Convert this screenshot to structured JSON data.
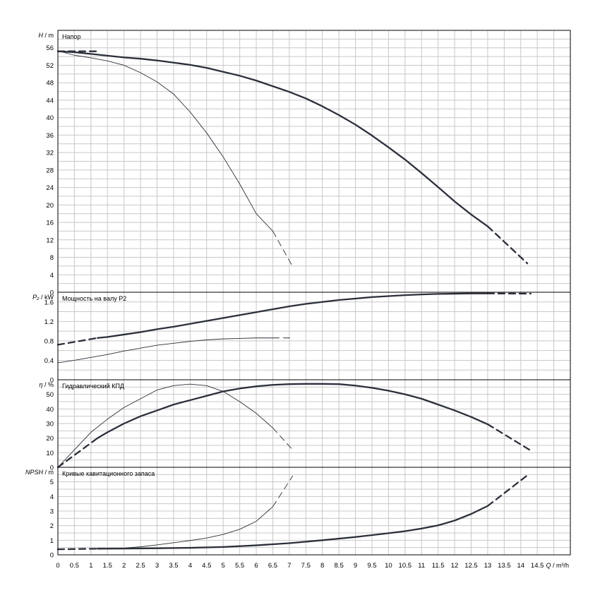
{
  "chart_data": [
    {
      "type": "line",
      "panel": "head",
      "title": "Напор",
      "ylabel_symbol": "H",
      "ylabel_unit": "m",
      "ylim": [
        0,
        60
      ],
      "yticks": [
        0,
        4,
        8,
        12,
        16,
        20,
        24,
        28,
        32,
        36,
        40,
        44,
        48,
        52,
        56
      ],
      "series": [
        {
          "weight": "bold",
          "x": [
            0,
            0.5,
            1,
            1.5,
            2,
            2.5,
            3,
            3.5,
            4,
            4.5,
            5,
            5.5,
            6,
            6.5,
            7,
            7.5,
            8,
            8.5,
            9,
            9.5,
            10,
            10.5,
            11,
            11.5,
            12,
            12.5,
            13
          ],
          "values": [
            55.2,
            55.0,
            54.6,
            54.2,
            53.8,
            53.5,
            53.1,
            52.6,
            52.1,
            51.4,
            50.5,
            49.6,
            48.5,
            47.2,
            45.9,
            44.4,
            42.6,
            40.6,
            38.4,
            35.9,
            33.2,
            30.4,
            27.3,
            24.1,
            20.8,
            17.8,
            15.1
          ],
          "dashed_start_x": [
            0,
            1.2
          ],
          "dashed_end_x": [
            13,
            14.2
          ],
          "dashed_end_y": [
            15.1,
            6.6
          ]
        },
        {
          "weight": "thin",
          "x": [
            0,
            0.5,
            1,
            1.5,
            2,
            2.5,
            3,
            3.5,
            4,
            4.5,
            5,
            5.5,
            6,
            6.5
          ],
          "values": [
            55.3,
            54.3,
            53.7,
            53.0,
            52.0,
            50.3,
            48.2,
            45.4,
            41.3,
            36.5,
            31.0,
            24.8,
            18.0,
            14.0
          ],
          "dashed_end_x": [
            6.5,
            7.1
          ],
          "dashed_end_y": [
            14.0,
            5.9
          ]
        }
      ]
    },
    {
      "type": "line",
      "panel": "power",
      "title": "Мощность на валу P2",
      "ylabel_symbol": "P₂",
      "ylabel_unit": "kW",
      "ylim": [
        0,
        1.8
      ],
      "yticks": [
        0,
        0.4,
        0.8,
        1.2,
        1.6
      ],
      "series": [
        {
          "weight": "bold",
          "x": [
            1.2,
            1.5,
            2,
            2.5,
            3,
            3.5,
            4,
            4.5,
            5,
            5.5,
            6,
            6.5,
            7,
            7.5,
            8,
            8.5,
            9,
            9.5,
            10,
            10.5,
            11,
            11.5,
            12,
            12.5,
            13
          ],
          "values": [
            0.86,
            0.88,
            0.93,
            0.98,
            1.04,
            1.09,
            1.15,
            1.21,
            1.27,
            1.33,
            1.39,
            1.45,
            1.51,
            1.56,
            1.6,
            1.64,
            1.67,
            1.7,
            1.72,
            1.74,
            1.755,
            1.765,
            1.77,
            1.775,
            1.775
          ],
          "dashed_start_x": [
            0,
            1.2
          ],
          "dashed_start_y": [
            0.72,
            0.86
          ],
          "dashed_end_x": [
            13,
            14.3
          ],
          "dashed_end_y": [
            1.775,
            1.77
          ]
        },
        {
          "weight": "thin",
          "x": [
            0,
            0.5,
            1,
            1.5,
            2,
            2.5,
            3,
            3.5,
            4,
            4.5,
            5,
            5.5,
            6,
            6.5
          ],
          "values": [
            0.35,
            0.4,
            0.46,
            0.52,
            0.59,
            0.65,
            0.71,
            0.75,
            0.79,
            0.82,
            0.84,
            0.85,
            0.86,
            0.86
          ],
          "dashed_end_x": [
            6.5,
            7.1
          ],
          "dashed_end_y": [
            0.86,
            0.86
          ]
        }
      ]
    },
    {
      "type": "line",
      "panel": "efficiency",
      "title": "Гидравлический КПД",
      "ylabel_symbol": "η",
      "ylabel_unit": "%",
      "ylim": [
        0,
        60
      ],
      "yticks": [
        0,
        10,
        20,
        30,
        40,
        50
      ],
      "series": [
        {
          "weight": "bold",
          "x": [
            1.2,
            1.5,
            2,
            2.5,
            3,
            3.5,
            4,
            4.5,
            5,
            5.5,
            6,
            6.5,
            7,
            7.5,
            8,
            8.5,
            9,
            9.5,
            10,
            10.5,
            11,
            11.5,
            12,
            12.5,
            13
          ],
          "values": [
            20,
            24,
            30,
            35,
            39,
            43,
            46,
            49,
            52,
            54,
            55.5,
            56.5,
            57,
            57.2,
            57.2,
            57,
            56,
            54.5,
            52.5,
            50,
            47,
            43,
            39,
            34.5,
            29.5
          ],
          "dashed_start_x": [
            0,
            1.2
          ],
          "dashed_start_y": [
            0,
            20
          ],
          "dashed_end_x": [
            13,
            14.3
          ],
          "dashed_end_y": [
            29.5,
            11.5
          ]
        },
        {
          "weight": "thin",
          "x": [
            0,
            0.5,
            1,
            1.5,
            2,
            2.5,
            3,
            3.5,
            4,
            4.5,
            5,
            5.5,
            6,
            6.5
          ],
          "values": [
            0,
            12,
            24,
            33,
            41,
            47,
            53,
            56,
            57,
            56,
            52,
            45,
            37,
            27
          ],
          "dashed_end_x": [
            6.5,
            7.1
          ],
          "dashed_end_y": [
            27,
            12
          ]
        }
      ]
    },
    {
      "type": "line",
      "panel": "npsh",
      "title": "Кривые кавитационного запаса",
      "ylabel_symbol": "NPSH",
      "ylabel_unit": "m",
      "ylim": [
        0,
        6
      ],
      "yticks": [
        0,
        1,
        2,
        3,
        4,
        5
      ],
      "xlabel_symbol": "Q",
      "xlabel_unit": "m³/h",
      "xlim": [
        0,
        15.5
      ],
      "xticks": [
        0,
        0.5,
        1,
        1.5,
        2,
        2.5,
        3,
        3.5,
        4,
        4.5,
        5,
        5.5,
        6,
        6.5,
        7,
        7.5,
        8,
        8.5,
        9,
        9.5,
        10,
        10.5,
        11,
        11.5,
        12,
        12.5,
        13,
        13.5,
        14,
        14.5
      ],
      "xticklabels": [
        "0",
        "0.5",
        "1",
        "1.5",
        "2",
        "2.5",
        "3",
        "3.5",
        "4",
        "4.5",
        "5",
        "5.5",
        "6",
        "6.5",
        "7",
        "7.5",
        "8",
        "8.5",
        "9",
        "9.5",
        "10",
        "10.5",
        "11",
        "11.5",
        "12",
        "12.5",
        "13",
        "13.5",
        "14",
        "14.5"
      ],
      "series": [
        {
          "weight": "bold",
          "x": [
            1.2,
            2,
            3,
            4,
            5,
            6,
            7,
            8,
            9,
            10,
            10.5,
            11,
            11.5,
            12,
            12.5,
            13
          ],
          "values": [
            0.42,
            0.43,
            0.45,
            0.48,
            0.54,
            0.65,
            0.8,
            1.0,
            1.22,
            1.48,
            1.62,
            1.8,
            2.02,
            2.35,
            2.8,
            3.35
          ],
          "dashed_start_x": [
            0,
            1.2
          ],
          "dashed_start_y": [
            0.38,
            0.42
          ],
          "dashed_end_x": [
            13,
            14.2
          ],
          "dashed_end_y": [
            3.35,
            5.45
          ]
        },
        {
          "weight": "thin",
          "x": [
            1.2,
            2,
            2.5,
            3,
            3.5,
            4,
            4.5,
            5,
            5.5,
            6,
            6.5
          ],
          "values": [
            0.42,
            0.46,
            0.55,
            0.68,
            0.83,
            0.98,
            1.15,
            1.4,
            1.75,
            2.3,
            3.3
          ],
          "dashed_end_x": [
            6.5,
            7.1
          ],
          "dashed_end_y": [
            3.3,
            5.4
          ]
        }
      ]
    }
  ]
}
